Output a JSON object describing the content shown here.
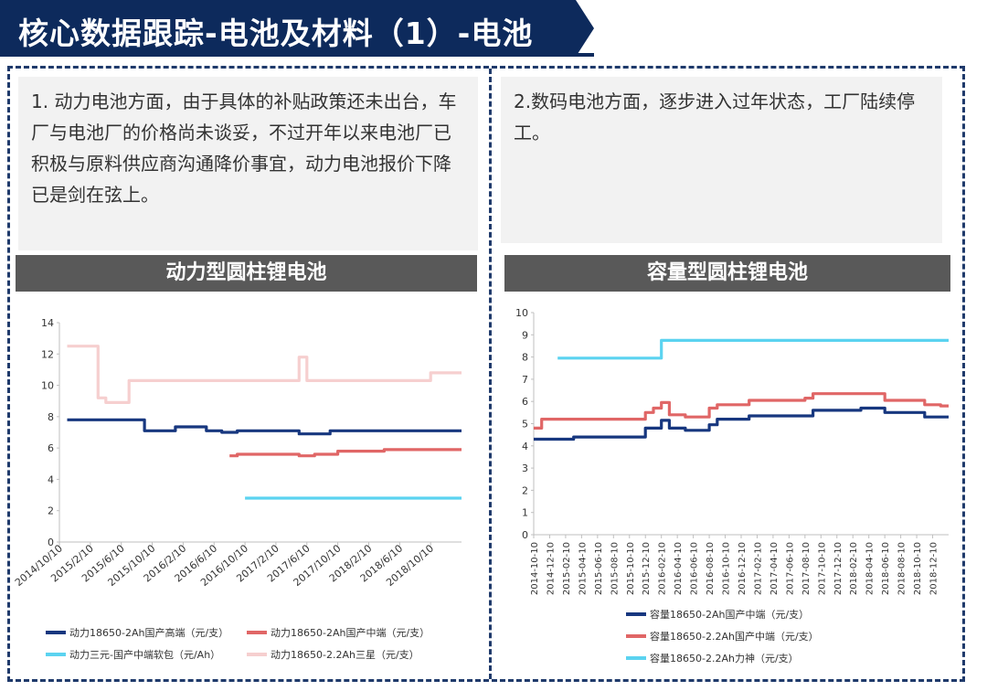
{
  "header": {
    "title": "核心数据跟踪-电池及材料（1）-电池",
    "bg_color": "#0d2a5c"
  },
  "left": {
    "text": "1. 动力电池方面，由于具体的补贴政策还未出台，车厂与电池厂的价格尚未谈妥，不过开年以来电池厂已积极与原料供应商沟通降价事宜，动力电池报价下降已是剑在弦上。",
    "section_title": "动力型圆柱锂电池"
  },
  "right": {
    "text": "2.数码电池方面，逐步进入过年状态，工厂陆续停工。",
    "section_title": "容量型圆柱锂电池"
  },
  "chart_data": [
    {
      "type": "line",
      "x_unit": "month",
      "x_start": "2014-10",
      "x_end": "2019-02",
      "x_ticks": [
        "2014/10/10",
        "2015/2/10",
        "2015/6/10",
        "2015/10/10",
        "2016/2/10",
        "2016/6/10",
        "2016/10/10",
        "2017/2/10",
        "2017/6/10",
        "2017/10/10",
        "2018/2/10",
        "2018/6/10",
        "2018/10/10"
      ],
      "ylim": [
        0,
        14
      ],
      "y_ticks": [
        0,
        2,
        4,
        6,
        8,
        10,
        12,
        14
      ],
      "grid": false,
      "legend_position": "bottom",
      "series": [
        {
          "name": "动力18650-2Ah国产高端（元/支）",
          "color": "#17377f",
          "points": [
            [
              "2014-11",
              7.8
            ],
            [
              "2015-9",
              7.8
            ],
            [
              "2015-9",
              7.1
            ],
            [
              "2016-1",
              7.1
            ],
            [
              "2016-1",
              7.35
            ],
            [
              "2016-5",
              7.35
            ],
            [
              "2016-5",
              7.1
            ],
            [
              "2016-7",
              7.1
            ],
            [
              "2016-7",
              7.0
            ],
            [
              "2016-9",
              7.0
            ],
            [
              "2016-9",
              7.1
            ],
            [
              "2017-5",
              7.1
            ],
            [
              "2017-5",
              6.9
            ],
            [
              "2017-9",
              6.9
            ],
            [
              "2017-9",
              7.1
            ],
            [
              "2019-2",
              7.1
            ]
          ]
        },
        {
          "name": "动力18650-2Ah国产中端（元/支）",
          "color": "#e06666",
          "points": [
            [
              "2016-8",
              5.5
            ],
            [
              "2016-9",
              5.5
            ],
            [
              "2016-9",
              5.6
            ],
            [
              "2017-5",
              5.6
            ],
            [
              "2017-5",
              5.5
            ],
            [
              "2017-7",
              5.5
            ],
            [
              "2017-7",
              5.6
            ],
            [
              "2017-10",
              5.6
            ],
            [
              "2017-10",
              5.8
            ],
            [
              "2018-4",
              5.8
            ],
            [
              "2018-4",
              5.9
            ],
            [
              "2019-2",
              5.9
            ]
          ]
        },
        {
          "name": "动力三元-国产中端软包（元/Ah）",
          "color": "#5bd3f0",
          "points": [
            [
              "2016-10",
              2.8
            ],
            [
              "2019-2",
              2.8
            ]
          ]
        },
        {
          "name": "动力18650-2.2Ah三星（元/支）",
          "color": "#f6cfcf",
          "points": [
            [
              "2014-11",
              12.5
            ],
            [
              "2015-3",
              12.5
            ],
            [
              "2015-3",
              9.2
            ],
            [
              "2015-4",
              9.2
            ],
            [
              "2015-4",
              8.9
            ],
            [
              "2015-7",
              8.9
            ],
            [
              "2015-7",
              10.3
            ],
            [
              "2017-5",
              10.3
            ],
            [
              "2017-5",
              11.8
            ],
            [
              "2017-6",
              11.8
            ],
            [
              "2017-6",
              10.3
            ],
            [
              "2018-10",
              10.3
            ],
            [
              "2018-10",
              10.8
            ],
            [
              "2019-2",
              10.8
            ]
          ]
        }
      ]
    },
    {
      "type": "line",
      "x_unit": "month",
      "x_start": "2014-10",
      "x_end": "2019-02",
      "x_ticks": [
        "2014-10-10",
        "2014-12-10",
        "2015-02-10",
        "2015-04-10",
        "2015-06-10",
        "2015-08-10",
        "2015-10-10",
        "2015-12-10",
        "2016-02-10",
        "2016-04-10",
        "2016-06-10",
        "2016-08-10",
        "2016-10-10",
        "2016-12-10",
        "2017-02-10",
        "2017-04-10",
        "2017-06-10",
        "2017-08-10",
        "2017-10-10",
        "2017-12-10",
        "2018-02-10",
        "2018-04-10",
        "2018-06-10",
        "2018-08-10",
        "2018-10-10",
        "2018-12-10"
      ],
      "ylim": [
        0,
        10
      ],
      "y_ticks": [
        0,
        1,
        2,
        3,
        4,
        5,
        6,
        7,
        8,
        9,
        10
      ],
      "grid": false,
      "legend_position": "bottom",
      "series": [
        {
          "name": "容量18650-2Ah国产中端（元/支）",
          "color": "#17377f",
          "points": [
            [
              "2014-10",
              4.3
            ],
            [
              "2015-3",
              4.3
            ],
            [
              "2015-3",
              4.4
            ],
            [
              "2015-12",
              4.4
            ],
            [
              "2015-12",
              4.8
            ],
            [
              "2016-2",
              4.8
            ],
            [
              "2016-2",
              5.15
            ],
            [
              "2016-3",
              5.15
            ],
            [
              "2016-3",
              4.8
            ],
            [
              "2016-5",
              4.8
            ],
            [
              "2016-5",
              4.7
            ],
            [
              "2016-8",
              4.7
            ],
            [
              "2016-8",
              4.95
            ],
            [
              "2016-9",
              4.95
            ],
            [
              "2016-9",
              5.2
            ],
            [
              "2017-1",
              5.2
            ],
            [
              "2017-1",
              5.35
            ],
            [
              "2017-9",
              5.35
            ],
            [
              "2017-9",
              5.6
            ],
            [
              "2018-3",
              5.6
            ],
            [
              "2018-3",
              5.7
            ],
            [
              "2018-6",
              5.7
            ],
            [
              "2018-6",
              5.5
            ],
            [
              "2018-11",
              5.5
            ],
            [
              "2018-11",
              5.3
            ],
            [
              "2019-2",
              5.3
            ]
          ]
        },
        {
          "name": "容量18650-2.2Ah国产中端（元/支）",
          "color": "#e06666",
          "points": [
            [
              "2014-10",
              4.8
            ],
            [
              "2014-11",
              4.8
            ],
            [
              "2014-11",
              5.2
            ],
            [
              "2015-12",
              5.2
            ],
            [
              "2015-12",
              5.5
            ],
            [
              "2016-1",
              5.5
            ],
            [
              "2016-1",
              5.7
            ],
            [
              "2016-2",
              5.7
            ],
            [
              "2016-2",
              5.95
            ],
            [
              "2016-3",
              5.95
            ],
            [
              "2016-3",
              5.4
            ],
            [
              "2016-5",
              5.4
            ],
            [
              "2016-5",
              5.3
            ],
            [
              "2016-8",
              5.3
            ],
            [
              "2016-8",
              5.7
            ],
            [
              "2016-9",
              5.7
            ],
            [
              "2016-9",
              5.85
            ],
            [
              "2017-1",
              5.85
            ],
            [
              "2017-1",
              6.05
            ],
            [
              "2017-8",
              6.05
            ],
            [
              "2017-8",
              6.15
            ],
            [
              "2017-9",
              6.15
            ],
            [
              "2017-9",
              6.35
            ],
            [
              "2018-6",
              6.35
            ],
            [
              "2018-6",
              6.05
            ],
            [
              "2018-11",
              6.05
            ],
            [
              "2018-11",
              5.85
            ],
            [
              "2019-1",
              5.85
            ],
            [
              "2019-1",
              5.8
            ],
            [
              "2019-2",
              5.8
            ]
          ]
        },
        {
          "name": "容量18650-2.2Ah力神（元/支）",
          "color": "#5bd3f0",
          "points": [
            [
              "2015-1",
              7.95
            ],
            [
              "2016-2",
              7.95
            ],
            [
              "2016-2",
              8.75
            ],
            [
              "2019-2",
              8.75
            ]
          ]
        }
      ]
    }
  ]
}
